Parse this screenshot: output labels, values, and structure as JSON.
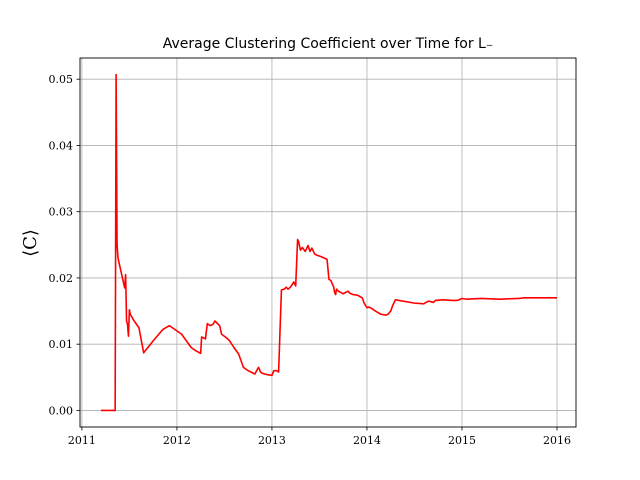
{
  "chart_data": {
    "type": "line",
    "title": "Average Clustering Coefficient over Time for L₋",
    "xlabel": "",
    "ylabel": "⟨C⟩",
    "xlim": [
      2010.98,
      2016.2
    ],
    "ylim": [
      -0.0025,
      0.0532
    ],
    "x_ticks": [
      2011,
      2012,
      2013,
      2014,
      2015,
      2016
    ],
    "x_tick_labels": [
      "2011",
      "2012",
      "2013",
      "2014",
      "2015",
      "2016"
    ],
    "y_ticks": [
      0.0,
      0.01,
      0.02,
      0.03,
      0.04,
      0.05
    ],
    "y_tick_labels": [
      "0.00",
      "0.01",
      "0.02",
      "0.03",
      "0.04",
      "0.05"
    ],
    "grid": true,
    "legend": null,
    "series": [
      {
        "color": "#ff0000",
        "x": [
          2011.2,
          2011.35,
          2011.36,
          2011.37,
          2011.38,
          2011.45,
          2011.46,
          2011.47,
          2011.48,
          2011.49,
          2011.5,
          2011.51,
          2011.53,
          2011.55,
          2011.6,
          2011.65,
          2011.75,
          2011.85,
          2011.92,
          2012.05,
          2012.1,
          2012.15,
          2012.2,
          2012.25,
          2012.26,
          2012.3,
          2012.32,
          2012.35,
          2012.38,
          2012.4,
          2012.45,
          2012.47,
          2012.5,
          2012.55,
          2012.6,
          2012.65,
          2012.7,
          2012.75,
          2012.82,
          2012.85,
          2012.86,
          2012.88,
          2012.9,
          2012.95,
          2013.0,
          2013.02,
          2013.05,
          2013.07,
          2013.1,
          2013.13,
          2013.15,
          2013.17,
          2013.2,
          2013.23,
          2013.25,
          2013.27,
          2013.28,
          2013.3,
          2013.32,
          2013.35,
          2013.38,
          2013.4,
          2013.42,
          2013.45,
          2013.48,
          2013.52,
          2013.58,
          2013.6,
          2013.62,
          2013.65,
          2013.66,
          2013.67,
          2013.68,
          2013.7,
          2013.75,
          2013.8,
          2013.82,
          2013.85,
          2013.9,
          2013.95,
          2013.97,
          2014.0,
          2014.02,
          2014.05,
          2014.1,
          2014.15,
          2014.2,
          2014.22,
          2014.25,
          2014.27,
          2014.3,
          2014.5,
          2014.6,
          2014.62,
          2014.65,
          2014.7,
          2014.72,
          2014.8,
          2014.9,
          2014.95,
          2015.0,
          2015.05,
          2015.2,
          2015.4,
          2015.6,
          2015.65,
          2016.0
        ],
        "y": [
          0.0,
          0.0,
          0.0507,
          0.025,
          0.023,
          0.0185,
          0.0205,
          0.0135,
          0.013,
          0.0112,
          0.0152,
          0.0145,
          0.014,
          0.0135,
          0.0125,
          0.0087,
          0.0105,
          0.0122,
          0.0128,
          0.0115,
          0.0105,
          0.0095,
          0.009,
          0.0086,
          0.0111,
          0.0108,
          0.0131,
          0.0128,
          0.013,
          0.0135,
          0.0128,
          0.0115,
          0.0112,
          0.0106,
          0.0095,
          0.0085,
          0.0065,
          0.006,
          0.0055,
          0.0063,
          0.0065,
          0.0058,
          0.0056,
          0.0054,
          0.0053,
          0.006,
          0.006,
          0.0058,
          0.0182,
          0.0183,
          0.0186,
          0.0183,
          0.0187,
          0.0194,
          0.0188,
          0.0258,
          0.0255,
          0.0242,
          0.0246,
          0.024,
          0.0249,
          0.024,
          0.0245,
          0.0236,
          0.0234,
          0.0232,
          0.0228,
          0.0198,
          0.0196,
          0.0186,
          0.0178,
          0.0175,
          0.0183,
          0.018,
          0.0176,
          0.018,
          0.0177,
          0.0175,
          0.0174,
          0.017,
          0.0162,
          0.0155,
          0.0156,
          0.0154,
          0.0149,
          0.0145,
          0.0144,
          0.0145,
          0.015,
          0.0158,
          0.0167,
          0.0162,
          0.0161,
          0.0163,
          0.0165,
          0.0163,
          0.0166,
          0.0167,
          0.0166,
          0.0166,
          0.0169,
          0.0168,
          0.0169,
          0.0168,
          0.0169,
          0.017,
          0.017
        ]
      }
    ]
  }
}
